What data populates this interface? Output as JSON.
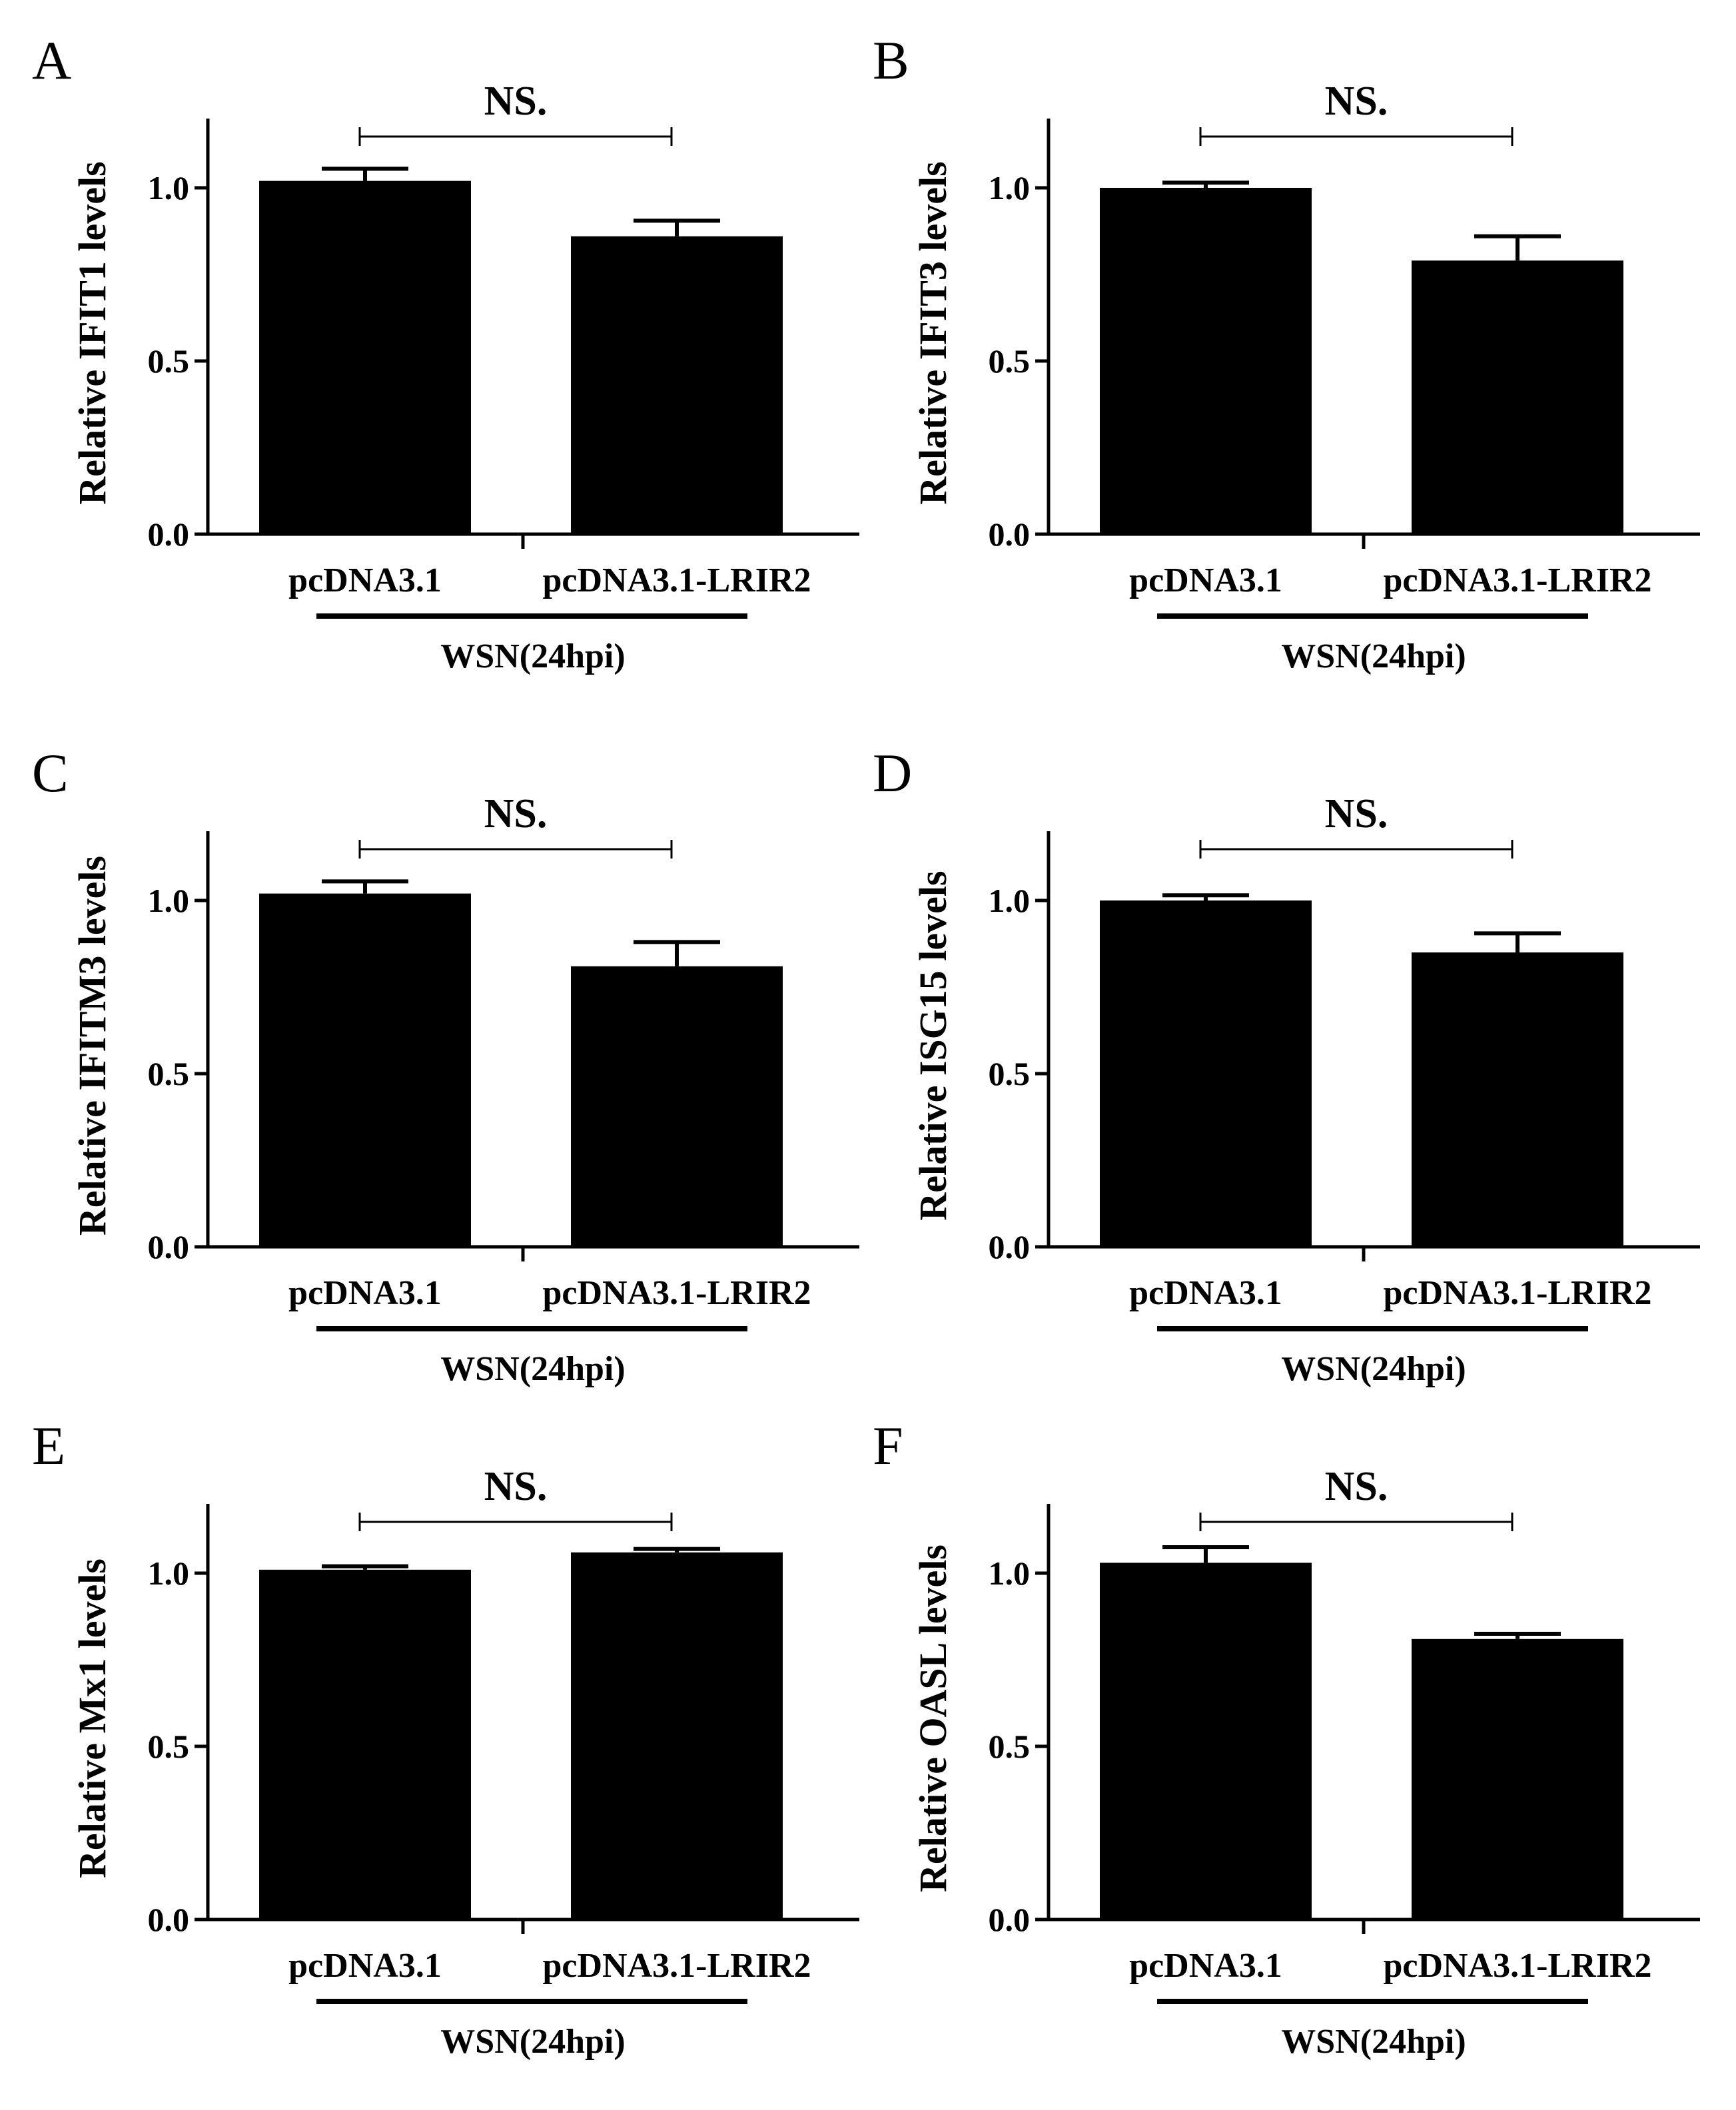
{
  "chart_data": [
    {
      "panel": "A",
      "type": "bar",
      "title": "NS.",
      "ylabel": "Relative IFIT1 levels",
      "categories": [
        "pcDNA3.1",
        "pcDNA3.1-LRIR2"
      ],
      "values": [
        1.02,
        0.86
      ],
      "errors": [
        0.035,
        0.045
      ],
      "group_label": "WSN(24hpi)",
      "ylim": [
        0,
        1.2
      ],
      "yticks": [
        "0.0",
        "0.5",
        "1.0"
      ]
    },
    {
      "panel": "B",
      "type": "bar",
      "title": "NS.",
      "ylabel": "Relative IFIT3 levels",
      "categories": [
        "pcDNA3.1",
        "pcDNA3.1-LRIR2"
      ],
      "values": [
        1.0,
        0.79
      ],
      "errors": [
        0.015,
        0.07
      ],
      "group_label": "WSN(24hpi)",
      "ylim": [
        0,
        1.2
      ],
      "yticks": [
        "0.0",
        "0.5",
        "1.0"
      ]
    },
    {
      "panel": "C",
      "type": "bar",
      "title": "NS.",
      "ylabel": "Relative IFITM3 levels",
      "categories": [
        "pcDNA3.1",
        "pcDNA3.1-LRIR2"
      ],
      "values": [
        1.02,
        0.81
      ],
      "errors": [
        0.035,
        0.07
      ],
      "group_label": "WSN(24hpi)",
      "ylim": [
        0,
        1.2
      ],
      "yticks": [
        "0.0",
        "0.5",
        "1.0"
      ]
    },
    {
      "panel": "D",
      "type": "bar",
      "title": "NS.",
      "ylabel": "Relative ISG15 levels",
      "categories": [
        "pcDNA3.1",
        "pcDNA3.1-LRIR2"
      ],
      "values": [
        1.0,
        0.85
      ],
      "errors": [
        0.015,
        0.055
      ],
      "group_label": "WSN(24hpi)",
      "ylim": [
        0,
        1.2
      ],
      "yticks": [
        "0.0",
        "0.5",
        "1.0"
      ]
    },
    {
      "panel": "E",
      "type": "bar",
      "title": "NS.",
      "ylabel": "Relative Mx1 levels",
      "categories": [
        "pcDNA3.1",
        "pcDNA3.1-LRIR2"
      ],
      "values": [
        1.01,
        1.06
      ],
      "errors": [
        0.01,
        0.01
      ],
      "group_label": "WSN(24hpi)",
      "ylim": [
        0,
        1.2
      ],
      "yticks": [
        "0.0",
        "0.5",
        "1.0"
      ]
    },
    {
      "panel": "F",
      "type": "bar",
      "title": "NS.",
      "ylabel": "Relative OASL levels",
      "categories": [
        "pcDNA3.1",
        "pcDNA3.1-LRIR2"
      ],
      "values": [
        1.03,
        0.81
      ],
      "errors": [
        0.045,
        0.015
      ],
      "group_label": "WSN(24hpi)",
      "ylim": [
        0,
        1.2
      ],
      "yticks": [
        "0.0",
        "0.5",
        "1.0"
      ]
    }
  ],
  "colors": {
    "bar": "#000000",
    "axis": "#000000",
    "background": "#ffffff"
  }
}
